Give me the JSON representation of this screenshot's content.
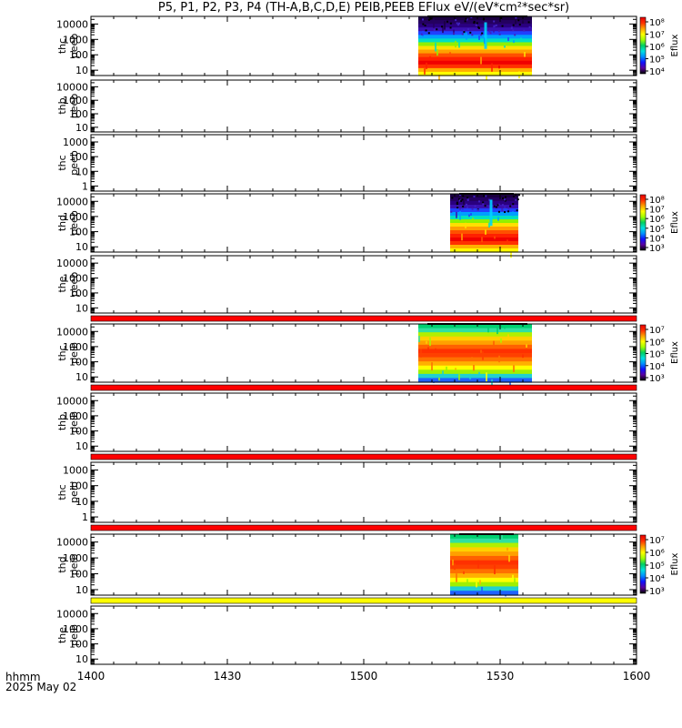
{
  "header": {
    "title": "P5, P1, P2, P3, P4 (TH-A,B,C,D,E) PEIB,PEEB EFlux eV/(eV*cm²*sec*sr)"
  },
  "footer": {
    "time_label": "hhmm",
    "date_label": "2025 May 02"
  },
  "chart_data": {
    "type": "heatmap",
    "x_ticks": [
      "1400",
      "1430",
      "1500",
      "1530",
      "1600"
    ],
    "x_range": [
      "14:00",
      "16:00"
    ],
    "panels": [
      {
        "label_top": "thc",
        "label_bottom": "peeb",
        "y_ticks": [
          "10",
          "100",
          "1000",
          "10000"
        ],
        "data_interval": [
          "15:12",
          "15:37"
        ],
        "colorbar": {
          "label": "Eflux",
          "ticks": [
            "10⁴",
            "10⁵",
            "10⁶",
            "10⁷",
            "10⁸"
          ]
        },
        "red_bar_below": false,
        "yellow_bar_below": false
      },
      {
        "label_top": "thb",
        "label_bottom": "peeb",
        "y_ticks": [
          "10",
          "100",
          "1000",
          "10000"
        ],
        "data_interval": null,
        "colorbar": null,
        "red_bar_below": false,
        "yellow_bar_below": false
      },
      {
        "label_top": "thc",
        "label_bottom": "peeb",
        "y_ticks": [
          "1",
          "10",
          "100",
          "1000"
        ],
        "data_interval": null,
        "colorbar": null,
        "red_bar_below": false,
        "yellow_bar_below": false
      },
      {
        "label_top": "thd",
        "label_bottom": "peeb",
        "y_ticks": [
          "10",
          "100",
          "1000",
          "10000"
        ],
        "data_interval": [
          "15:19",
          "15:34"
        ],
        "colorbar": {
          "label": "Eflux",
          "ticks": [
            "10³",
            "10⁴",
            "10⁵",
            "10⁶",
            "10⁷",
            "10⁸"
          ]
        },
        "red_bar_below": false,
        "yellow_bar_below": false
      },
      {
        "label_top": "the",
        "label_bottom": "peeb",
        "y_ticks": [
          "10",
          "100",
          "1000",
          "10000"
        ],
        "data_interval": null,
        "colorbar": null,
        "red_bar_below": true,
        "yellow_bar_below": false
      },
      {
        "label_top": "thc",
        "label_bottom": "peib",
        "y_ticks": [
          "10",
          "100",
          "1000",
          "10000"
        ],
        "data_interval": [
          "15:12",
          "15:37"
        ],
        "colorbar": {
          "label": "Eflux",
          "ticks": [
            "10³",
            "10⁴",
            "10⁵",
            "10⁶",
            "10⁷"
          ]
        },
        "red_bar_below": true,
        "yellow_bar_below": false
      },
      {
        "label_top": "thb",
        "label_bottom": "peib",
        "y_ticks": [
          "10",
          "100",
          "1000",
          "10000"
        ],
        "data_interval": null,
        "colorbar": null,
        "red_bar_below": true,
        "yellow_bar_below": false
      },
      {
        "label_top": "thc",
        "label_bottom": "peib",
        "y_ticks": [
          "1",
          "10",
          "100",
          "1000"
        ],
        "data_interval": null,
        "colorbar": null,
        "red_bar_below": true,
        "yellow_bar_below": false
      },
      {
        "label_top": "thd",
        "label_bottom": "peib",
        "y_ticks": [
          "10",
          "100",
          "1000",
          "10000"
        ],
        "data_interval": [
          "15:19",
          "15:34"
        ],
        "colorbar": {
          "label": "Eflux",
          "ticks": [
            "10³",
            "10⁴",
            "10⁵",
            "10⁶",
            "10⁷"
          ]
        },
        "red_bar_below": false,
        "yellow_bar_below": true
      },
      {
        "label_top": "the",
        "label_bottom": "peib",
        "y_ticks": [
          "10",
          "100",
          "1000",
          "10000"
        ],
        "data_interval": null,
        "colorbar": null,
        "red_bar_below": false,
        "yellow_bar_below": false
      }
    ]
  }
}
